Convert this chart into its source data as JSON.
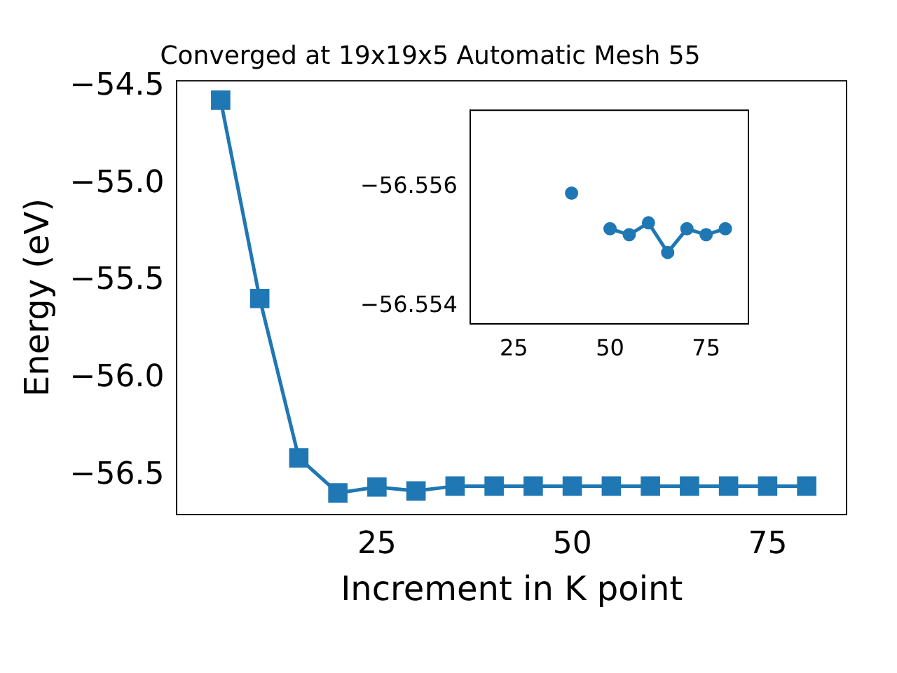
{
  "chart_data": [
    {
      "type": "line",
      "title": "Converged at 19x19x5 Automatic Mesh 55",
      "xlabel": "Increment in K point",
      "ylabel": "Energy (eV)",
      "x": [
        5,
        10,
        15,
        20,
        25,
        30,
        35,
        40,
        45,
        50,
        55,
        60,
        65,
        70,
        75,
        80
      ],
      "series": [
        {
          "color": "#1f77b4",
          "values": [
            -54.57,
            -55.59,
            -56.41,
            -56.59,
            -56.56,
            -56.58,
            -56.555,
            -56.555,
            -56.555,
            -56.555,
            -56.555,
            -56.555,
            -56.555,
            -56.555,
            -56.555,
            -56.555
          ]
        }
      ],
      "xlim": [
        -0.6,
        85.1
      ],
      "ylim": [
        -56.7,
        -54.47
      ],
      "xticks": [
        25,
        50,
        75
      ],
      "yticks": [
        {
          "value": -56.5,
          "label": "−56.5"
        },
        {
          "value": -56,
          "label": "−56.0"
        },
        {
          "value": -55.5,
          "label": "−55.5"
        },
        {
          "value": -55,
          "label": "−55.0"
        },
        {
          "value": -54.5,
          "label": "−54.5"
        }
      ],
      "marker": "square",
      "line_style": "solid",
      "grid": false,
      "legend": false
    },
    {
      "type": "line",
      "x": [
        40,
        45,
        50,
        55,
        60,
        65,
        70,
        75,
        80
      ],
      "series": [
        {
          "color": "#1f77b4",
          "values": [
            -56.5559,
            null,
            -56.5553,
            -56.5552,
            -56.5554,
            -56.5549,
            -56.5553,
            -56.5552,
            -56.5553
          ]
        }
      ],
      "xlim": [
        13.6,
        86
      ],
      "ylim": [
        -56.5537,
        -56.5573
      ],
      "xticks": [
        25,
        50,
        75
      ],
      "yticks": [
        {
          "value": -56.556,
          "label": "−56.556"
        },
        {
          "value": -56.554,
          "label": "−56.554"
        }
      ],
      "marker": "circle",
      "line_style": "solid",
      "grid": false,
      "legend": false
    }
  ]
}
